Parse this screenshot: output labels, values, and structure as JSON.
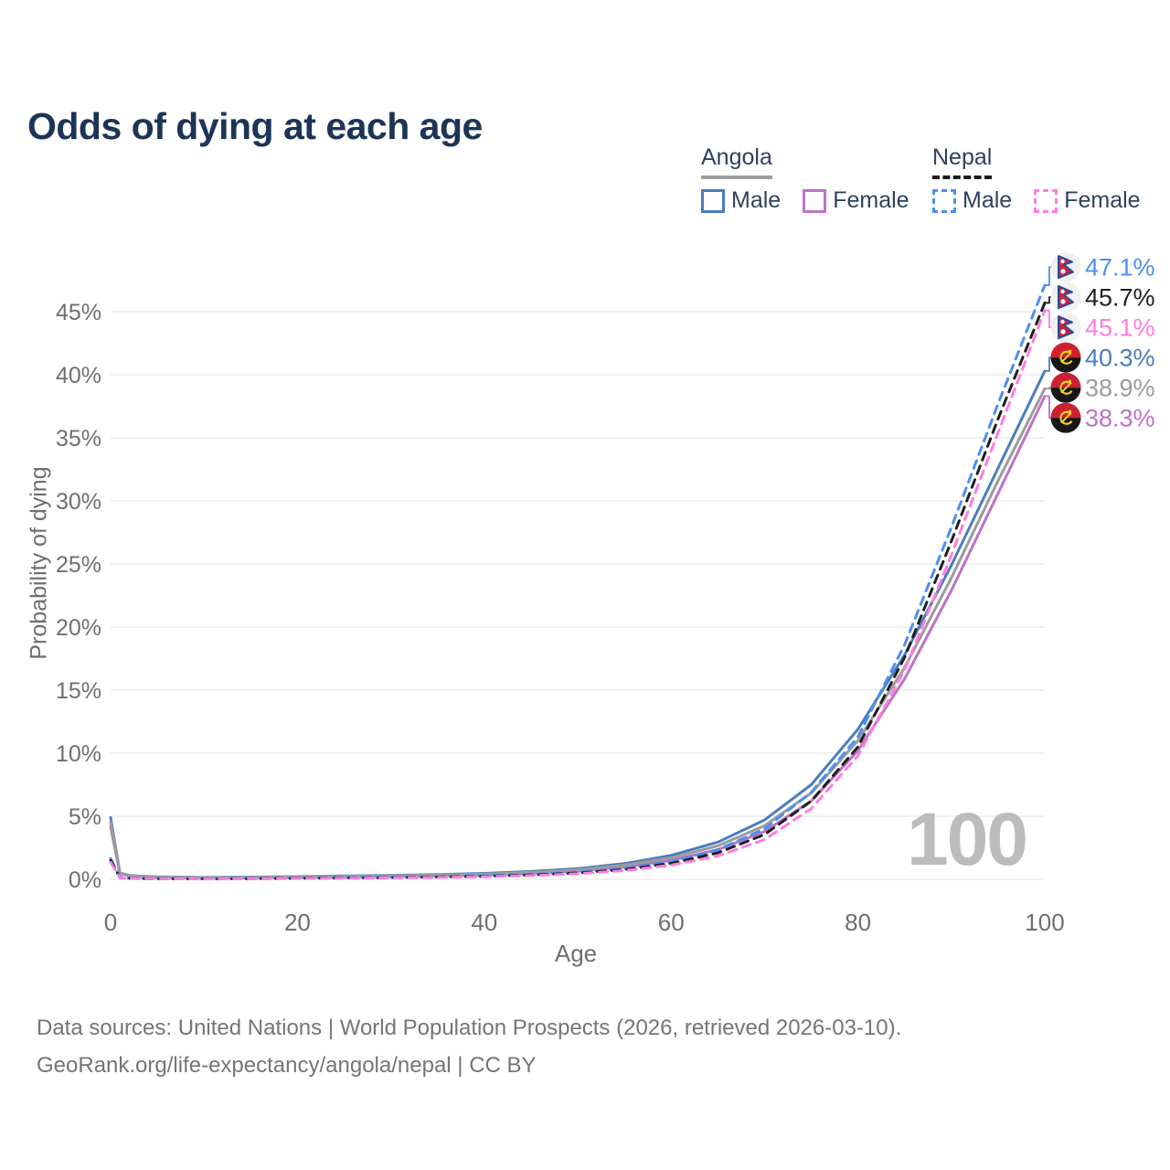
{
  "title": "Odds of dying at each age",
  "watermark": "100",
  "footer": {
    "line1": "Data sources: United Nations | World Population Prospects (2026, retrieved 2026-03-10).",
    "line2": "GeoRank.org/life-expectancy/angola/nepal | CC BY"
  },
  "legend": {
    "groups": [
      {
        "name": "Angola",
        "line_style": "solid",
        "line_color": "#9e9e9e",
        "items": [
          {
            "label": "Male",
            "color": "#4a7dbd",
            "dashed": false
          },
          {
            "label": "Female",
            "color": "#bd72c6",
            "dashed": false
          }
        ]
      },
      {
        "name": "Nepal",
        "line_style": "dashed",
        "line_color": "#1a1a1a",
        "items": [
          {
            "label": "Male",
            "color": "#4d8ef2",
            "dashed": true
          },
          {
            "label": "Female",
            "color": "#ff7ce3",
            "dashed": true
          }
        ]
      }
    ]
  },
  "chart_data": {
    "type": "line",
    "title": "Odds of dying at each age",
    "xlabel": "Age",
    "ylabel": "Probability of dying",
    "xlim": [
      0,
      100
    ],
    "ylim_pct": [
      0,
      48.5
    ],
    "grid": true,
    "legend_position": "top-right",
    "x_ticks": [
      0,
      20,
      40,
      60,
      80,
      100
    ],
    "y_ticks": [
      {
        "value": 0,
        "label": "0%"
      },
      {
        "value": 5,
        "label": "5%"
      },
      {
        "value": 10,
        "label": "10%"
      },
      {
        "value": 15,
        "label": "15%"
      },
      {
        "value": 20,
        "label": "20%"
      },
      {
        "value": 25,
        "label": "25%"
      },
      {
        "value": 30,
        "label": "30%"
      },
      {
        "value": 35,
        "label": "35%"
      },
      {
        "value": 40,
        "label": "40%"
      },
      {
        "value": 45,
        "label": "45%"
      }
    ],
    "x": [
      0,
      1,
      2,
      3,
      5,
      10,
      15,
      20,
      25,
      30,
      35,
      40,
      45,
      50,
      55,
      60,
      65,
      70,
      75,
      80,
      85,
      90,
      95,
      100
    ],
    "series": [
      {
        "name": "Angola Male",
        "country": "Angola",
        "sex": "male",
        "color": "#4a7dbd",
        "dashed": false,
        "flag": "angola",
        "end_value": 40.3,
        "end_label": "40.3%",
        "values": [
          4.9,
          0.5,
          0.32,
          0.26,
          0.2,
          0.15,
          0.18,
          0.22,
          0.27,
          0.32,
          0.38,
          0.47,
          0.62,
          0.85,
          1.25,
          1.9,
          2.95,
          4.7,
          7.5,
          11.9,
          17.8,
          24.9,
          32.6,
          40.3
        ]
      },
      {
        "name": "Angola Female",
        "country": "Angola",
        "sex": "female",
        "color": "#bd72c6",
        "dashed": false,
        "flag": "angola",
        "end_value": 38.3,
        "end_label": "38.3%",
        "values": [
          4.15,
          0.45,
          0.28,
          0.23,
          0.18,
          0.13,
          0.15,
          0.17,
          0.2,
          0.24,
          0.29,
          0.36,
          0.48,
          0.67,
          0.98,
          1.5,
          2.35,
          3.8,
          6.2,
          10.2,
          15.9,
          22.9,
          30.6,
          38.3
        ]
      },
      {
        "name": "Angola Total",
        "country": "Angola",
        "sex": "both",
        "color": "#9b9b9b",
        "dashed": false,
        "flag": "angola",
        "end_value": 38.9,
        "end_label": "38.9%",
        "values": [
          4.55,
          0.48,
          0.3,
          0.24,
          0.19,
          0.14,
          0.16,
          0.2,
          0.24,
          0.28,
          0.34,
          0.42,
          0.55,
          0.76,
          1.12,
          1.7,
          2.65,
          4.25,
          6.85,
          11.0,
          16.8,
          23.9,
          31.6,
          38.9
        ]
      },
      {
        "name": "Nepal Male",
        "country": "Nepal",
        "sex": "male",
        "color": "#4d8ef2",
        "dashed": true,
        "flag": "nepal",
        "end_value": 47.1,
        "end_label": "47.1%",
        "values": [
          1.65,
          0.16,
          0.09,
          0.07,
          0.05,
          0.04,
          0.06,
          0.1,
          0.13,
          0.16,
          0.21,
          0.28,
          0.39,
          0.56,
          0.86,
          1.4,
          2.35,
          4.0,
          6.9,
          11.3,
          18.6,
          27.9,
          37.7,
          47.1
        ]
      },
      {
        "name": "Nepal Total",
        "country": "Nepal",
        "sex": "both",
        "color": "#1f1f1f",
        "dashed": true,
        "flag": "nepal",
        "end_value": 45.7,
        "end_label": "45.7%",
        "values": [
          1.5,
          0.14,
          0.08,
          0.06,
          0.045,
          0.035,
          0.05,
          0.08,
          0.11,
          0.14,
          0.18,
          0.24,
          0.34,
          0.5,
          0.77,
          1.26,
          2.1,
          3.55,
          6.2,
          10.5,
          17.6,
          26.8,
          36.5,
          45.7
        ]
      },
      {
        "name": "Nepal Female",
        "country": "Nepal",
        "sex": "female",
        "color": "#ff7ce3",
        "dashed": true,
        "flag": "nepal",
        "end_value": 45.1,
        "end_label": "45.1%",
        "values": [
          1.35,
          0.13,
          0.07,
          0.055,
          0.04,
          0.03,
          0.045,
          0.065,
          0.09,
          0.12,
          0.15,
          0.21,
          0.3,
          0.44,
          0.69,
          1.12,
          1.85,
          3.15,
          5.6,
          9.8,
          16.6,
          25.7,
          35.4,
          45.1
        ]
      }
    ]
  }
}
